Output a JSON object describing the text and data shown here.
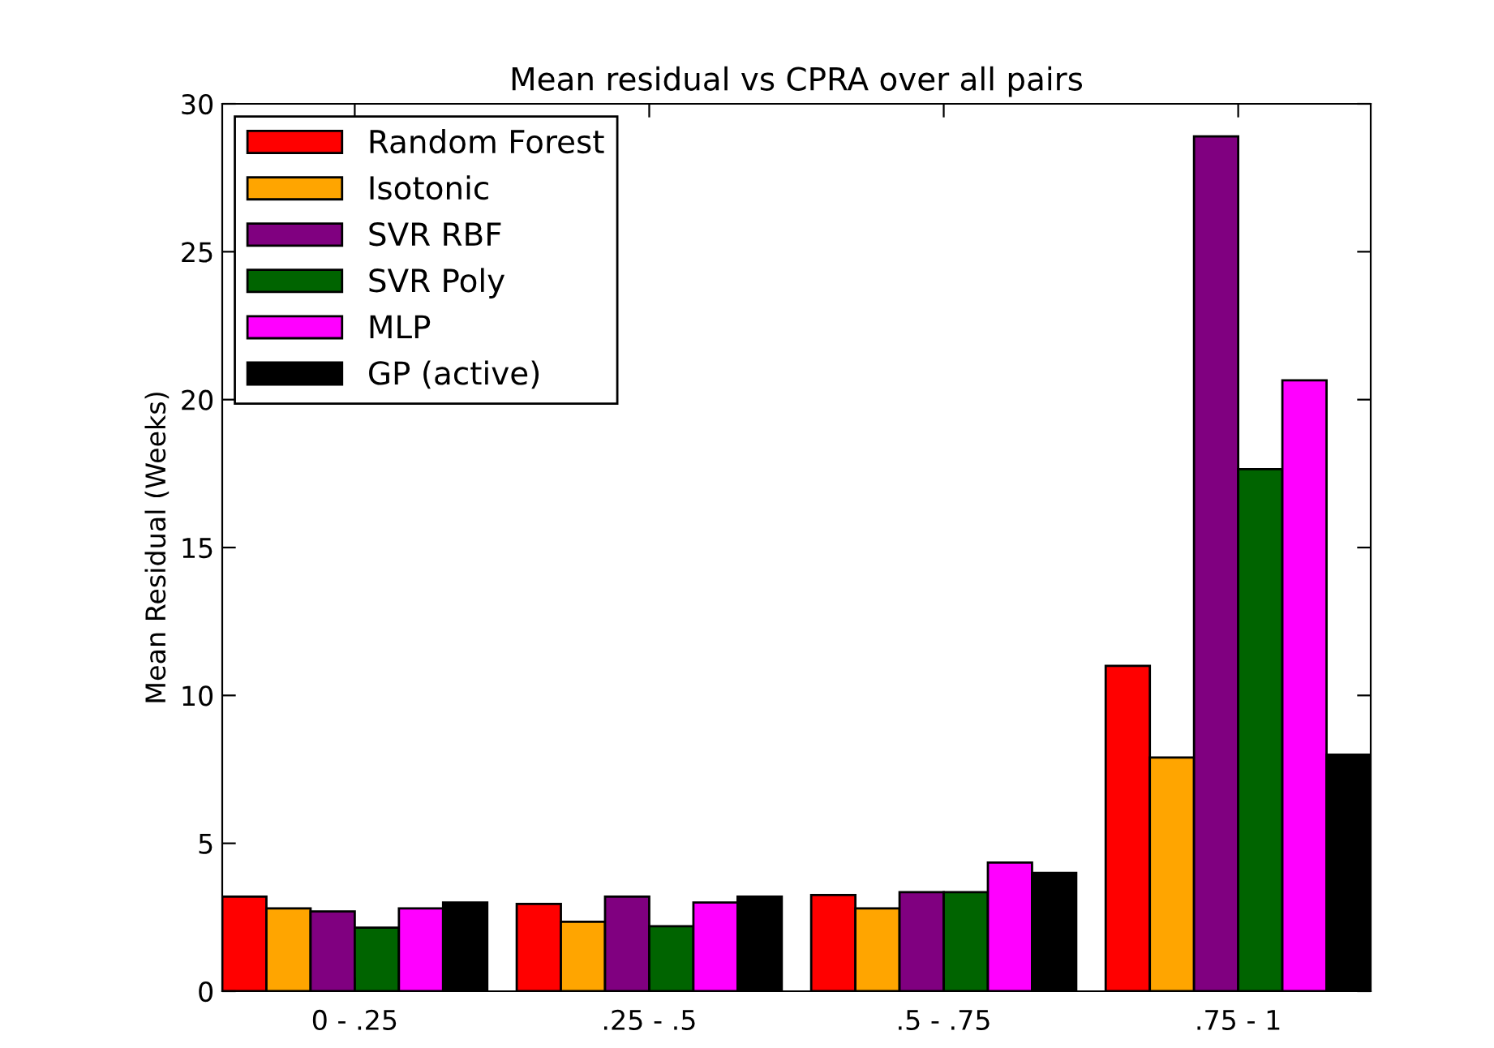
{
  "chart_data": {
    "type": "bar",
    "title": "Mean residual vs CPRA over all pairs",
    "ylabel": "Mean Residual (Weeks)",
    "categories": [
      "0 - .25",
      ".25 - .5",
      ".5 - .75",
      ".75 - 1"
    ],
    "series": [
      {
        "name": "Random Forest",
        "color": "#ff0000",
        "values": [
          3.2,
          2.95,
          3.25,
          11.0
        ]
      },
      {
        "name": "Isotonic",
        "color": "#ffa500",
        "values": [
          2.8,
          2.35,
          2.8,
          7.9
        ]
      },
      {
        "name": "SVR RBF",
        "color": "#800080",
        "values": [
          2.7,
          3.2,
          3.35,
          28.9
        ]
      },
      {
        "name": "SVR Poly",
        "color": "#006400",
        "values": [
          2.15,
          2.2,
          3.35,
          17.65
        ]
      },
      {
        "name": "MLP",
        "color": "#ff00ff",
        "values": [
          2.8,
          3.0,
          4.35,
          20.65
        ]
      },
      {
        "name": "GP (active)",
        "color": "#000000",
        "values": [
          3.0,
          3.2,
          4.0,
          8.0
        ]
      }
    ],
    "ylim": [
      0,
      30
    ],
    "yticks": [
      0,
      5,
      10,
      15,
      20,
      25,
      30
    ],
    "grid": false,
    "legend": "top left"
  }
}
